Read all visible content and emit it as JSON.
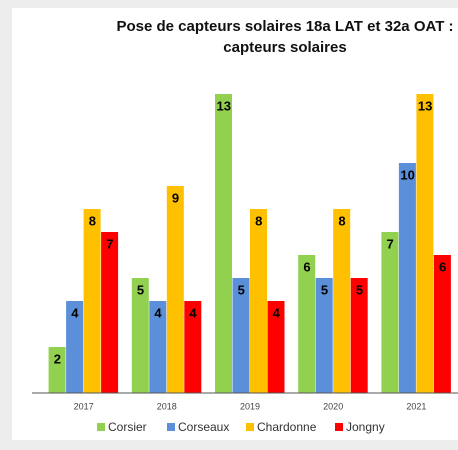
{
  "chart_data": {
    "type": "bar",
    "title": "Pose de capteurs solaires 18a LAT et 32a OAT : capteurs solaires",
    "categories": [
      "2017",
      "2018",
      "2019",
      "2020",
      "2021"
    ],
    "series": [
      {
        "name": "Corsier",
        "color": "#92d050",
        "values": [
          2,
          5,
          13,
          6,
          7
        ]
      },
      {
        "name": "Corseaux",
        "color": "#5b8fd9",
        "values": [
          4,
          4,
          5,
          5,
          10
        ]
      },
      {
        "name": "Chardonne",
        "color": "#ffc000",
        "values": [
          8,
          9,
          8,
          8,
          13
        ]
      },
      {
        "name": "Jongny",
        "color": "#ff0000",
        "values": [
          7,
          4,
          4,
          5,
          6
        ]
      }
    ],
    "ylim": [
      0,
      13
    ],
    "legend": "bottom"
  }
}
